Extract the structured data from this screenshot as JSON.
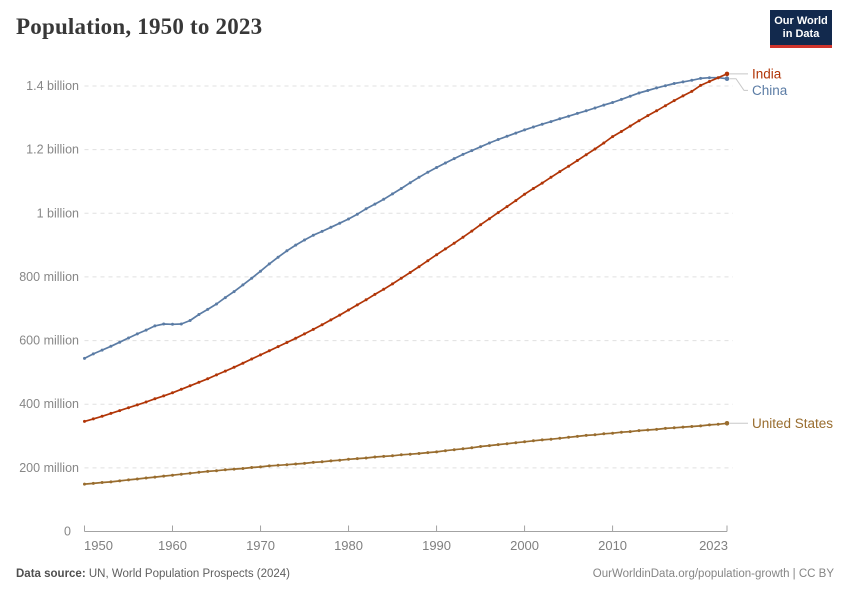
{
  "header": {
    "title": "Population, 1950 to 2023"
  },
  "logo": {
    "line1": "Our World",
    "line2": "in Data",
    "bg_color": "#12294d",
    "bar_color": "#d0342c"
  },
  "footer": {
    "source_label": "Data source:",
    "source_value": "UN, World Population Prospects (2024)",
    "credit": "OurWorldinData.org/population-growth | CC BY"
  },
  "chart_data": {
    "type": "line",
    "title": "Population, 1950 to 2023",
    "xlabel": "",
    "ylabel": "",
    "unit": "millions of people",
    "ylim": [
      0,
      1400
    ],
    "x_range": [
      1950,
      2023
    ],
    "grid": "horizontal-dashed",
    "markers": true,
    "legend_position": "end-of-line-labels",
    "grid_color": "#e0e0e0",
    "axis_color": "#a3a3a3",
    "connector_color": "#c8c8c8",
    "yticks": [
      {
        "value": 0,
        "label": "0"
      },
      {
        "value": 200,
        "label": "200 million"
      },
      {
        "value": 400,
        "label": "400 million"
      },
      {
        "value": 600,
        "label": "600 million"
      },
      {
        "value": 800,
        "label": "800 million"
      },
      {
        "value": 1000,
        "label": "1 billion"
      },
      {
        "value": 1200,
        "label": "1.2 billion"
      },
      {
        "value": 1400,
        "label": "1.4 billion"
      }
    ],
    "xticks": [
      {
        "year": 1950,
        "label": "1950",
        "anchor": "start"
      },
      {
        "year": 1960,
        "label": "1960",
        "anchor": "middle"
      },
      {
        "year": 1970,
        "label": "1970",
        "anchor": "middle"
      },
      {
        "year": 1980,
        "label": "1980",
        "anchor": "middle"
      },
      {
        "year": 1990,
        "label": "1990",
        "anchor": "middle"
      },
      {
        "year": 2000,
        "label": "2000",
        "anchor": "middle"
      },
      {
        "year": 2010,
        "label": "2010",
        "anchor": "middle"
      },
      {
        "year": 2023,
        "label": "2023",
        "anchor": "end"
      }
    ],
    "x": [
      1950,
      1951,
      1952,
      1953,
      1954,
      1955,
      1956,
      1957,
      1958,
      1959,
      1960,
      1961,
      1962,
      1963,
      1964,
      1965,
      1966,
      1967,
      1968,
      1969,
      1970,
      1971,
      1972,
      1973,
      1974,
      1975,
      1976,
      1977,
      1978,
      1979,
      1980,
      1981,
      1982,
      1983,
      1984,
      1985,
      1986,
      1987,
      1988,
      1989,
      1990,
      1991,
      1992,
      1993,
      1994,
      1995,
      1996,
      1997,
      1998,
      1999,
      2000,
      2001,
      2002,
      2003,
      2004,
      2005,
      2006,
      2007,
      2008,
      2009,
      2010,
      2011,
      2012,
      2013,
      2014,
      2015,
      2016,
      2017,
      2018,
      2019,
      2020,
      2021,
      2022,
      2023
    ],
    "series": [
      {
        "name": "India",
        "color": "#b13507",
        "values": [
          346,
          354,
          362,
          371,
          380,
          389,
          398,
          407,
          417,
          426,
          436,
          447,
          458,
          469,
          480,
          492,
          504,
          516,
          529,
          542,
          555,
          568,
          581,
          594,
          607,
          621,
          635,
          650,
          665,
          680,
          696,
          712,
          728,
          745,
          761,
          778,
          796,
          814,
          832,
          851,
          870,
          888,
          906,
          925,
          944,
          964,
          983,
          1002,
          1021,
          1040,
          1060,
          1078,
          1095,
          1113,
          1131,
          1148,
          1166,
          1184,
          1202,
          1221,
          1241,
          1257,
          1274,
          1291,
          1307,
          1322,
          1338,
          1354,
          1369,
          1383,
          1402,
          1414,
          1426,
          1438
        ]
      },
      {
        "name": "China",
        "color": "#5b7ca5",
        "values": [
          544,
          558,
          570,
          582,
          595,
          608,
          621,
          633,
          646,
          652,
          651,
          652,
          663,
          682,
          698,
          715,
          735,
          754,
          775,
          796,
          818,
          841,
          862,
          882,
          900,
          916,
          931,
          943,
          956,
          969,
          982,
          997,
          1014,
          1029,
          1044,
          1061,
          1078,
          1096,
          1113,
          1129,
          1144,
          1158,
          1172,
          1185,
          1197,
          1209,
          1221,
          1232,
          1242,
          1252,
          1262,
          1271,
          1280,
          1288,
          1297,
          1305,
          1314,
          1322,
          1331,
          1340,
          1348,
          1358,
          1368,
          1378,
          1386,
          1394,
          1401,
          1408,
          1413,
          1418,
          1424,
          1426,
          1426,
          1423
        ]
      },
      {
        "name": "United States",
        "color": "#996d2f",
        "values": [
          149,
          151,
          154,
          156,
          159,
          162,
          165,
          168,
          171,
          174,
          177,
          180,
          183,
          186,
          189,
          191,
          194,
          196,
          198,
          201,
          203,
          206,
          208,
          210,
          212,
          214,
          217,
          219,
          222,
          224,
          227,
          229,
          231,
          234,
          236,
          238,
          241,
          243,
          245,
          248,
          250,
          254,
          257,
          260,
          263,
          267,
          270,
          273,
          276,
          279,
          282,
          285,
          288,
          290,
          293,
          296,
          299,
          302,
          304,
          307,
          309,
          312,
          314,
          317,
          319,
          321,
          324,
          326,
          328,
          330,
          332,
          335,
          337,
          340
        ]
      }
    ]
  }
}
